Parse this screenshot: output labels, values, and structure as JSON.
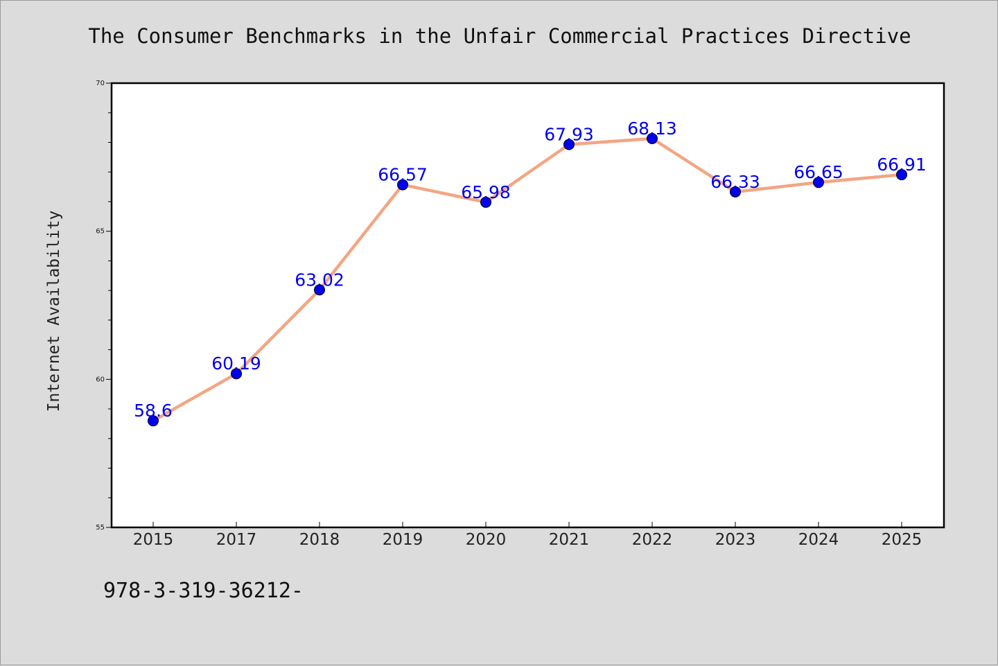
{
  "chart_data": {
    "type": "line",
    "title": "The Consumer Benchmarks in the Unfair Commercial Practices Directive",
    "xlabel": "",
    "ylabel": "Internet Availability",
    "categories": [
      "2015",
      "2017",
      "2018",
      "2019",
      "2020",
      "2021",
      "2022",
      "2023",
      "2024",
      "2025"
    ],
    "series": [
      {
        "values": [
          58.6,
          60.19,
          63.02,
          66.57,
          65.98,
          67.93,
          68.13,
          66.33,
          66.65,
          66.91
        ],
        "labels": [
          "58.6",
          "60.19",
          "63.02",
          "66.57",
          "65.98",
          "67.93",
          "68.13",
          "66.33",
          "66.65",
          "66.91"
        ]
      }
    ],
    "ylim": [
      55,
      70
    ],
    "yticks": [
      "55",
      "60",
      "65",
      "70"
    ],
    "grid": false,
    "legend": "none",
    "line_color": "#f4a582",
    "marker_color": "#0000ee",
    "label_color": "#0000ee"
  },
  "footer": {
    "text": "978-3-319-36212-"
  }
}
